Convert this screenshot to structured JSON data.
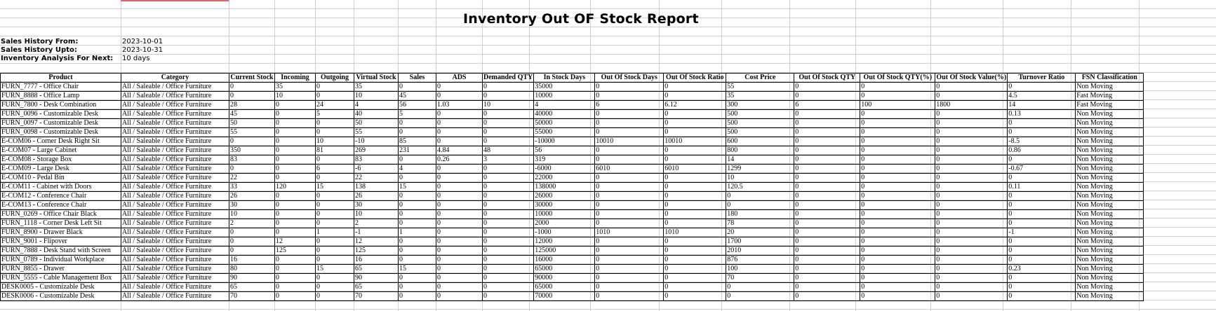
{
  "report": {
    "title": "Inventory Out OF Stock Report",
    "meta": [
      {
        "label": "Sales History From:",
        "value": "2023-10-01"
      },
      {
        "label": "Sales History Upto:",
        "value": "2023-10-31"
      },
      {
        "label": "Inventory Analysis For Next:",
        "value": "10 days"
      }
    ]
  },
  "table": {
    "columns": [
      "Product",
      "Category",
      "Current Stock",
      "Incoming",
      "Outgoing",
      "Virtual Stock",
      "Sales",
      "ADS",
      "Demanded QTY",
      "In Stock Days",
      "Out Of Stock Days",
      "Out Of Stock Ratio",
      "Cost Price",
      "Out Of Stock QTY",
      "Out Of Stock QTY(%)",
      "Out Of Stock Value(%)",
      "Turnover Ratio",
      "FSN Classification"
    ],
    "rows": [
      [
        "FURN_7777 - Office Chair",
        "All / Saleable / Office Furniture",
        "0",
        "35",
        "0",
        "35",
        "0",
        "0",
        "0",
        "35000",
        "0",
        "0",
        "55",
        "0",
        "0",
        "0",
        "0",
        "Non Moving"
      ],
      [
        "FURN_8888 - Office Lamp",
        "All / Saleable / Office Furniture",
        "0",
        "10",
        "0",
        "10",
        "45",
        "0",
        "0",
        "10000",
        "0",
        "0",
        "35",
        "0",
        "0",
        "0",
        "4.5",
        "Fast Moving"
      ],
      [
        "FURN_7800 - Desk Combination",
        "All / Saleable / Office Furniture",
        "28",
        "0",
        "24",
        "4",
        "56",
        "1.03",
        "10",
        "4",
        "6",
        "6.12",
        "300",
        "6",
        "100",
        "1800",
        "14",
        "Fast Moving"
      ],
      [
        "FURN_0096 - Customizable Desk",
        "All / Saleable / Office Furniture",
        "45",
        "0",
        "5",
        "40",
        "5",
        "0",
        "0",
        "40000",
        "0",
        "0",
        "500",
        "0",
        "0",
        "0",
        "0.13",
        "Non Moving"
      ],
      [
        "FURN_0097 - Customizable Desk",
        "All / Saleable / Office Furniture",
        "50",
        "0",
        "0",
        "50",
        "0",
        "0",
        "0",
        "50000",
        "0",
        "0",
        "500",
        "0",
        "0",
        "0",
        "0",
        "Non Moving"
      ],
      [
        "FURN_0098 - Customizable Desk",
        "All / Saleable / Office Furniture",
        "55",
        "0",
        "0",
        "55",
        "0",
        "0",
        "0",
        "55000",
        "0",
        "0",
        "500",
        "0",
        "0",
        "0",
        "0",
        "Non Moving"
      ],
      [
        "E-COM06 - Corner Desk Right Sit",
        "All / Saleable / Office Furniture",
        "0",
        "0",
        "10",
        "-10",
        "85",
        "0",
        "0",
        "-10000",
        "10010",
        "10010",
        "600",
        "0",
        "0",
        "0",
        "-8.5",
        "Non Moving"
      ],
      [
        "E-COM07 - Large Cabinet",
        "All / Saleable / Office Furniture",
        "350",
        "0",
        "81",
        "269",
        "231",
        "4.84",
        "48",
        "56",
        "0",
        "0",
        "800",
        "0",
        "0",
        "0",
        "0.86",
        "Non Moving"
      ],
      [
        "E-COM08 - Storage Box",
        "All / Saleable / Office Furniture",
        "83",
        "0",
        "0",
        "83",
        "0",
        "0.26",
        "3",
        "319",
        "0",
        "0",
        "14",
        "0",
        "0",
        "0",
        "0",
        "Non Moving"
      ],
      [
        "E-COM09 - Large Desk",
        "All / Saleable / Office Furniture",
        "0",
        "0",
        "6",
        "-6",
        "4",
        "0",
        "0",
        "-6000",
        "6010",
        "6010",
        "1299",
        "0",
        "0",
        "0",
        "-0.67",
        "Non Moving"
      ],
      [
        "E-COM10 - Pedal Bin",
        "All / Saleable / Office Furniture",
        "22",
        "0",
        "0",
        "22",
        "0",
        "0",
        "0",
        "22000",
        "0",
        "0",
        "10",
        "0",
        "0",
        "0",
        "0",
        "Non Moving"
      ],
      [
        "E-COM11 - Cabinet with Doors",
        "All / Saleable / Office Furniture",
        "33",
        "120",
        "15",
        "138",
        "15",
        "0",
        "0",
        "138000",
        "0",
        "0",
        "120.5",
        "0",
        "0",
        "0",
        "0.11",
        "Non Moving"
      ],
      [
        "E-COM12 - Conference Chair",
        "All / Saleable / Office Furniture",
        "26",
        "0",
        "0",
        "26",
        "0",
        "0",
        "0",
        "26000",
        "0",
        "0",
        "0",
        "0",
        "0",
        "0",
        "0",
        "Non Moving"
      ],
      [
        "E-COM13 - Conference Chair",
        "All / Saleable / Office Furniture",
        "30",
        "0",
        "0",
        "30",
        "0",
        "0",
        "0",
        "30000",
        "0",
        "0",
        "0",
        "0",
        "0",
        "0",
        "0",
        "Non Moving"
      ],
      [
        "FURN_0269 - Office Chair Black",
        "All / Saleable / Office Furniture",
        "10",
        "0",
        "0",
        "10",
        "0",
        "0",
        "0",
        "10000",
        "0",
        "0",
        "180",
        "0",
        "0",
        "0",
        "0",
        "Non Moving"
      ],
      [
        "FURN_1118 - Corner Desk Left Sit",
        "All / Saleable / Office Furniture",
        "2",
        "0",
        "0",
        "2",
        "0",
        "0",
        "0",
        "2000",
        "0",
        "0",
        "78",
        "0",
        "0",
        "0",
        "0",
        "Non Moving"
      ],
      [
        "FURN_8900 - Drawer Black",
        "All / Saleable / Office Furniture",
        "0",
        "0",
        "1",
        "-1",
        "1",
        "0",
        "0",
        "-1000",
        "1010",
        "1010",
        "20",
        "0",
        "0",
        "0",
        "-1",
        "Non Moving"
      ],
      [
        "FURN_9001 - Flipover",
        "All / Saleable / Office Furniture",
        "0",
        "12",
        "0",
        "12",
        "0",
        "0",
        "0",
        "12000",
        "0",
        "0",
        "1700",
        "0",
        "0",
        "0",
        "0",
        "Non Moving"
      ],
      [
        "FURN_7888 - Desk Stand with Screen",
        "All / Saleable / Office Furniture",
        "0",
        "125",
        "0",
        "125",
        "0",
        "0",
        "0",
        "125000",
        "0",
        "0",
        "2010",
        "0",
        "0",
        "0",
        "0",
        "Non Moving"
      ],
      [
        "FURN_0789 - Individual Workplace",
        "All / Saleable / Office Furniture",
        "16",
        "0",
        "0",
        "16",
        "0",
        "0",
        "0",
        "16000",
        "0",
        "0",
        "876",
        "0",
        "0",
        "0",
        "0",
        "Non Moving"
      ],
      [
        "FURN_8855 - Drawer",
        "All / Saleable / Office Furniture",
        "80",
        "0",
        "15",
        "65",
        "15",
        "0",
        "0",
        "65000",
        "0",
        "0",
        "100",
        "0",
        "0",
        "0",
        "0.23",
        "Non Moving"
      ],
      [
        "FURN_5555 - Cable Management Box",
        "All / Saleable / Office Furniture",
        "90",
        "0",
        "0",
        "90",
        "0",
        "0",
        "0",
        "90000",
        "0",
        "0",
        "70",
        "0",
        "0",
        "0",
        "0",
        "Non Moving"
      ],
      [
        "DESK0005 - Customizable Desk",
        "All / Saleable / Office Furniture",
        "65",
        "0",
        "0",
        "65",
        "0",
        "0",
        "0",
        "65000",
        "0",
        "0",
        "0",
        "0",
        "0",
        "0",
        "0",
        "Non Moving"
      ],
      [
        "DESK0006 - Customizable Desk",
        "All / Saleable / Office Furniture",
        "70",
        "0",
        "0",
        "70",
        "0",
        "0",
        "0",
        "70000",
        "0",
        "0",
        "0",
        "0",
        "0",
        "0",
        "0",
        "Non Moving"
      ]
    ]
  }
}
